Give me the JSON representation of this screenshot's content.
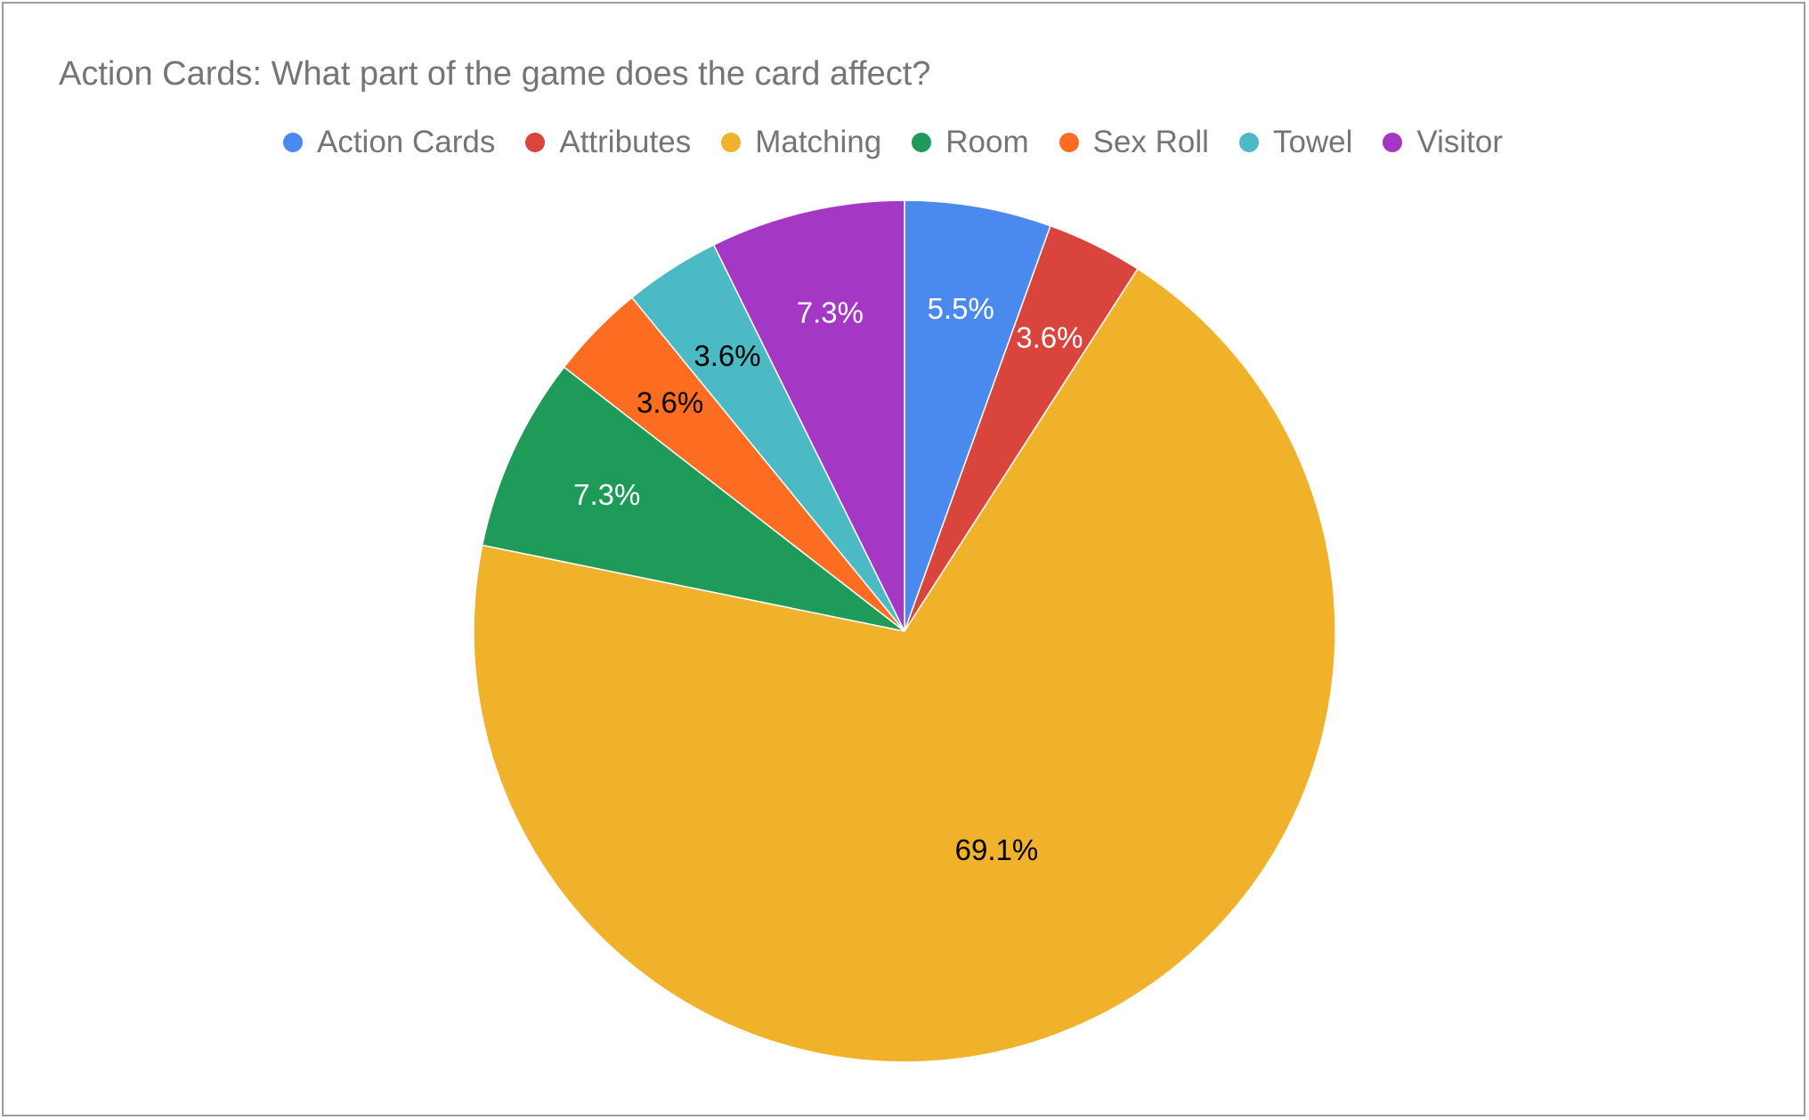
{
  "chart_data": {
    "type": "pie",
    "title": "Action Cards: What part of the game does the card affect?",
    "legend_position": "top",
    "slices": [
      {
        "name": "Action Cards",
        "value": 5.5,
        "label": "5.5%",
        "color": "#4a89ee",
        "label_color": "#ffffff"
      },
      {
        "name": "Attributes",
        "value": 3.6,
        "label": "3.6%",
        "color": "#d9443c",
        "label_color": "#ffffff"
      },
      {
        "name": "Matching",
        "value": 69.1,
        "label": "69.1%",
        "color": "#f1b22b",
        "label_color": "#000000"
      },
      {
        "name": "Room",
        "value": 7.3,
        "label": "7.3%",
        "color": "#1f9b59",
        "label_color": "#ffffff"
      },
      {
        "name": "Sex Roll",
        "value": 3.6,
        "label": "3.6%",
        "color": "#fc6d22",
        "label_color": "#000000"
      },
      {
        "name": "Towel",
        "value": 3.6,
        "label": "3.6%",
        "color": "#4bbac4",
        "label_color": "#000000"
      },
      {
        "name": "Visitor",
        "value": 7.3,
        "label": "7.3%",
        "color": "#a437c3",
        "label_color": "#ffffff"
      }
    ]
  }
}
